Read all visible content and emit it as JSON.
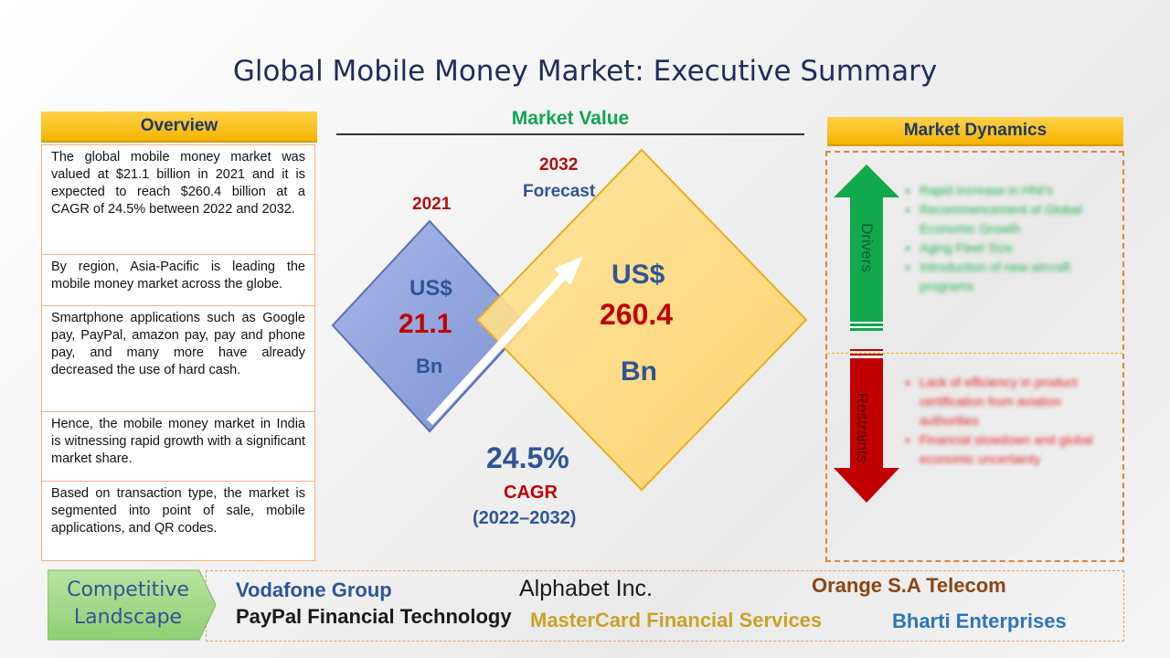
{
  "title": "Global Mobile Money Market: Executive Summary",
  "overview": {
    "header": "Overview",
    "items": [
      "The global mobile money market was valued at $21.1 billion in 2021 and it is expected to reach $260.4 billion at a CAGR of 24.5% between 2022 and 2032.",
      "By region, Asia-Pacific is leading the mobile money market across the globe.",
      "Smartphone applications such as Google pay, PayPal, amazon pay, pay and phone pay, and many more have already decreased the use of hard cash.",
      "Hence, the mobile money market in India is witnessing rapid growth with a significant market share.",
      "Based on transaction type, the market is segmented into point of sale, mobile applications, and QR codes."
    ]
  },
  "market_value": {
    "header": "Market Value",
    "left": {
      "year": "2021",
      "currency": "US$",
      "value": "21.1",
      "unit": "Bn"
    },
    "right": {
      "year": "2032",
      "label": "Forecast",
      "currency": "US$",
      "value": "260.4",
      "unit": "Bn"
    },
    "cagr": {
      "value": "24.5%",
      "label": "CAGR",
      "period": "(2022–2032)"
    },
    "colors": {
      "left_diamond": "#8fa2dc",
      "right_diamond": "#ffd97a"
    }
  },
  "market_dynamics": {
    "header": "Market Dynamics",
    "drivers": {
      "label": "Drivers",
      "color": "#0fa84f",
      "items": [
        "Rapid increase in HNI's",
        "Recommencement of Global Economic Growth",
        "Aging Fleet Size",
        "Introduction of new aircraft programs"
      ]
    },
    "restraints": {
      "label": "Restraints",
      "color": "#c00000",
      "items": [
        "Lack of efficiency in product certification from aviation authorities",
        "Financial slowdown and global economic uncertainty"
      ]
    }
  },
  "competitive_landscape": {
    "label_line1": "Competitive",
    "label_line2": "Landscape",
    "companies": [
      {
        "name": "Vodafone Group",
        "color": "#2f5597"
      },
      {
        "name": "PayPal Financial Technology",
        "color": "#1a1a1a"
      },
      {
        "name": "Alphabet Inc.",
        "color": "#1a1a1a"
      },
      {
        "name": "MasterCard Financial Services",
        "color": "#c9a227"
      },
      {
        "name": "Orange S.A Telecom",
        "color": "#8b4513"
      },
      {
        "name": "Bharti Enterprises",
        "color": "#2e75b6"
      }
    ]
  }
}
